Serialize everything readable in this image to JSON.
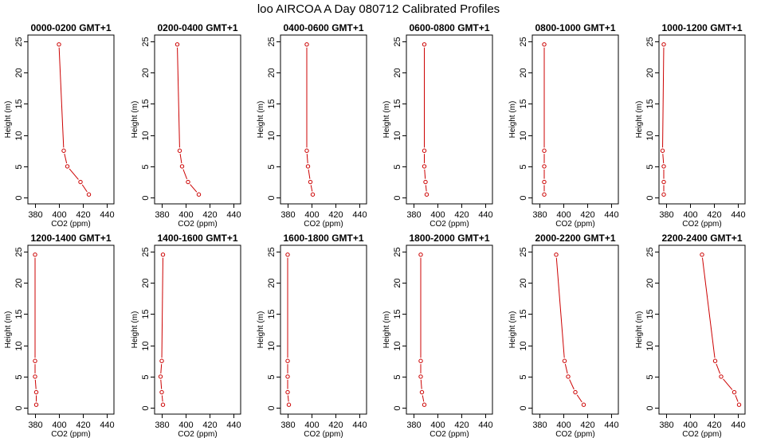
{
  "title": "loo AIRCOA A  Day 080712  Calibrated Profiles",
  "colors": {
    "profile": "#cc0000",
    "axis": "#000000"
  },
  "chart_data": [
    {
      "type": "line",
      "title": "0000-0200 GMT+1",
      "xlabel": "CO2 (ppm)",
      "ylabel": "Height (m)",
      "xlim": [
        374,
        446
      ],
      "ylim": [
        -1,
        26
      ],
      "xticks": [
        380,
        400,
        420,
        440
      ],
      "yticks": [
        0,
        5,
        10,
        15,
        20,
        25
      ],
      "x": [
        425,
        418,
        407,
        404,
        400
      ],
      "y": [
        0.5,
        2.5,
        5,
        7.5,
        24.5
      ]
    },
    {
      "type": "line",
      "title": "0200-0400 GMT+1",
      "xlabel": "CO2 (ppm)",
      "ylabel": "Height (m)",
      "xlim": [
        374,
        446
      ],
      "ylim": [
        -1,
        26
      ],
      "xticks": [
        380,
        400,
        420,
        440
      ],
      "yticks": [
        0,
        5,
        10,
        15,
        20,
        25
      ],
      "x": [
        411,
        402,
        397,
        395,
        393
      ],
      "y": [
        0.5,
        2.5,
        5,
        7.5,
        24.5
      ]
    },
    {
      "type": "line",
      "title": "0400-0600 GMT+1",
      "xlabel": "CO2 (ppm)",
      "ylabel": "Height (m)",
      "xlim": [
        374,
        446
      ],
      "ylim": [
        -1,
        26
      ],
      "xticks": [
        380,
        400,
        420,
        440
      ],
      "yticks": [
        0,
        5,
        10,
        15,
        20,
        25
      ],
      "x": [
        401,
        399,
        397,
        396,
        396
      ],
      "y": [
        0.5,
        2.5,
        5,
        7.5,
        24.5
      ]
    },
    {
      "type": "line",
      "title": "0600-0800 GMT+1",
      "xlabel": "CO2 (ppm)",
      "ylabel": "Height (m)",
      "xlim": [
        374,
        446
      ],
      "ylim": [
        -1,
        26
      ],
      "xticks": [
        380,
        400,
        420,
        440
      ],
      "yticks": [
        0,
        5,
        10,
        15,
        20,
        25
      ],
      "x": [
        391,
        390,
        389,
        389,
        389
      ],
      "y": [
        0.5,
        2.5,
        5,
        7.5,
        24.5
      ]
    },
    {
      "type": "line",
      "title": "0800-1000 GMT+1",
      "xlabel": "CO2 (ppm)",
      "ylabel": "Height (m)",
      "xlim": [
        374,
        446
      ],
      "ylim": [
        -1,
        26
      ],
      "xticks": [
        380,
        400,
        420,
        440
      ],
      "yticks": [
        0,
        5,
        10,
        15,
        20,
        25
      ],
      "x": [
        384,
        384,
        384,
        384,
        384
      ],
      "y": [
        0.5,
        2.5,
        5,
        7.5,
        24.5
      ]
    },
    {
      "type": "line",
      "title": "1000-1200 GMT+1",
      "xlabel": "CO2 (ppm)",
      "ylabel": "Height (m)",
      "xlim": [
        374,
        446
      ],
      "ylim": [
        -1,
        26
      ],
      "xticks": [
        380,
        400,
        420,
        440
      ],
      "yticks": [
        0,
        5,
        10,
        15,
        20,
        25
      ],
      "x": [
        378,
        378,
        378,
        377,
        378
      ],
      "y": [
        0.5,
        2.5,
        5,
        7.5,
        24.5
      ]
    },
    {
      "type": "line",
      "title": "1200-1400 GMT+1",
      "xlabel": "CO2 (ppm)",
      "ylabel": "Height (m)",
      "xlim": [
        374,
        446
      ],
      "ylim": [
        -1,
        26
      ],
      "xticks": [
        380,
        400,
        420,
        440
      ],
      "yticks": [
        0,
        5,
        10,
        15,
        20,
        25
      ],
      "x": [
        381,
        381,
        380,
        380,
        380
      ],
      "y": [
        0.5,
        2.5,
        5,
        7.5,
        24.5
      ]
    },
    {
      "type": "line",
      "title": "1400-1600 GMT+1",
      "xlabel": "CO2 (ppm)",
      "ylabel": "Height (m)",
      "xlim": [
        374,
        446
      ],
      "ylim": [
        -1,
        26
      ],
      "xticks": [
        380,
        400,
        420,
        440
      ],
      "yticks": [
        0,
        5,
        10,
        15,
        20,
        25
      ],
      "x": [
        381,
        380,
        379,
        380,
        381
      ],
      "y": [
        0.5,
        2.5,
        5,
        7.5,
        24.5
      ]
    },
    {
      "type": "line",
      "title": "1600-1800 GMT+1",
      "xlabel": "CO2 (ppm)",
      "ylabel": "Height (m)",
      "xlim": [
        374,
        446
      ],
      "ylim": [
        -1,
        26
      ],
      "xticks": [
        380,
        400,
        420,
        440
      ],
      "yticks": [
        0,
        5,
        10,
        15,
        20,
        25
      ],
      "x": [
        381,
        380,
        380,
        380,
        380
      ],
      "y": [
        0.5,
        2.5,
        5,
        7.5,
        24.5
      ]
    },
    {
      "type": "line",
      "title": "1800-2000 GMT+1",
      "xlabel": "CO2 (ppm)",
      "ylabel": "Height (m)",
      "xlim": [
        374,
        446
      ],
      "ylim": [
        -1,
        26
      ],
      "xticks": [
        380,
        400,
        420,
        440
      ],
      "yticks": [
        0,
        5,
        10,
        15,
        20,
        25
      ],
      "x": [
        389,
        387,
        386,
        386,
        386
      ],
      "y": [
        0.5,
        2.5,
        5,
        7.5,
        24.5
      ]
    },
    {
      "type": "line",
      "title": "2000-2200 GMT+1",
      "xlabel": "CO2 (ppm)",
      "ylabel": "Height (m)",
      "xlim": [
        374,
        446
      ],
      "ylim": [
        -1,
        26
      ],
      "xticks": [
        380,
        400,
        420,
        440
      ],
      "yticks": [
        0,
        5,
        10,
        15,
        20,
        25
      ],
      "x": [
        417,
        410,
        404,
        401,
        394
      ],
      "y": [
        0.5,
        2.5,
        5,
        7.5,
        24.5
      ]
    },
    {
      "type": "line",
      "title": "2200-2400 GMT+1",
      "xlabel": "CO2 (ppm)",
      "ylabel": "Height (m)",
      "xlim": [
        374,
        446
      ],
      "ylim": [
        -1,
        26
      ],
      "xticks": [
        380,
        400,
        420,
        440
      ],
      "yticks": [
        0,
        5,
        10,
        15,
        20,
        25
      ],
      "x": [
        441,
        437,
        426,
        421,
        410
      ],
      "y": [
        0.5,
        2.5,
        5,
        7.5,
        24.5
      ]
    }
  ]
}
